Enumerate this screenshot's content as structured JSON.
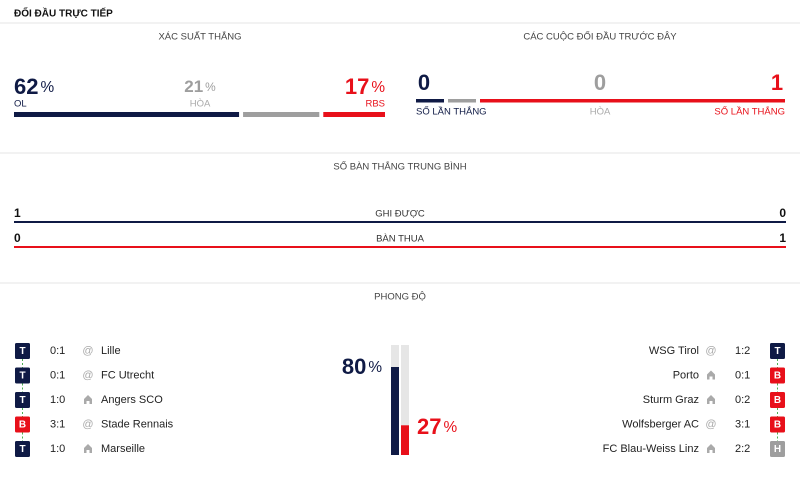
{
  "header": {
    "title": "ĐỐI ĐẦU TRỰC TIẾP"
  },
  "win_probability": {
    "title": "XÁC SUẤT THẲNG",
    "unit": "%",
    "items": [
      {
        "value": 62,
        "label": "OL",
        "color": "#0f1a45"
      },
      {
        "value": 21,
        "label": "HÒA",
        "color": "#9e9e9e"
      },
      {
        "value": 17,
        "label": "RBS",
        "color": "#e8101a"
      }
    ]
  },
  "previous_meetings": {
    "title": "CÁC CUỘC ĐỐI ĐẦU TRƯỚC ĐÂY",
    "items": [
      {
        "value": 0,
        "label": "SỐ LẦN THẮNG",
        "color": "#0f1a45"
      },
      {
        "value": 0,
        "label": "HÒA",
        "color": "#9e9e9e"
      },
      {
        "value": 1,
        "label": "SỐ LẦN THẮNG",
        "color": "#e8101a"
      }
    ]
  },
  "average_goals": {
    "title": "SỐ BÀN THẮNG TRUNG BÌNH",
    "rows": [
      {
        "label": "GHI ĐƯỢC",
        "home": 1,
        "away": 0,
        "color": "#0f1a45"
      },
      {
        "label": "BÀN THUA",
        "home": 0,
        "away": 1,
        "color": "#e8101a"
      }
    ]
  },
  "form": {
    "title": "PHONG ĐỘ",
    "unit": "%",
    "home_percent": 80,
    "away_percent": 27,
    "home": [
      {
        "result": "T",
        "score": "0:1",
        "venue": "@",
        "team": "Lille"
      },
      {
        "result": "T",
        "score": "0:1",
        "venue": "@",
        "team": "FC Utrecht"
      },
      {
        "result": "T",
        "score": "1:0",
        "venue": null,
        "team": "Angers SCO"
      },
      {
        "result": "B",
        "score": "3:1",
        "venue": "@",
        "team": "Stade Rennais"
      },
      {
        "result": "T",
        "score": "1:0",
        "venue": null,
        "team": "Marseille"
      }
    ],
    "away": [
      {
        "result": "T",
        "score": "1:2",
        "venue": "@",
        "team": "WSG Tirol"
      },
      {
        "result": "B",
        "score": "0:1",
        "venue": null,
        "team": "Porto"
      },
      {
        "result": "B",
        "score": "0:2",
        "venue": null,
        "team": "Sturm Graz"
      },
      {
        "result": "B",
        "score": "3:1",
        "venue": "@",
        "team": "Wolfsberger AC"
      },
      {
        "result": "H",
        "score": "2:2",
        "venue": null,
        "team": "FC Blau-Weiss Linz"
      }
    ]
  }
}
